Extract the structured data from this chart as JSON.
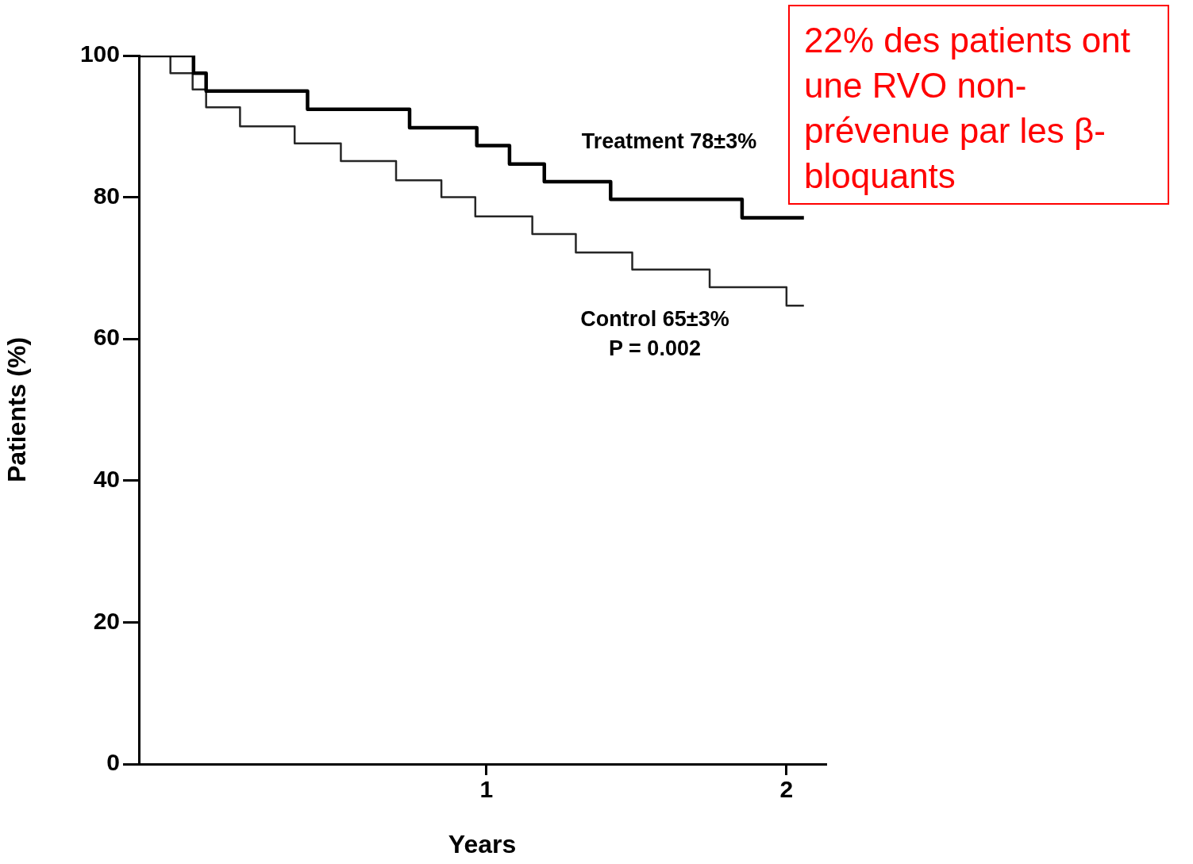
{
  "chart_data": {
    "type": "step",
    "xlabel": "Years",
    "ylabel": "Patients (%)",
    "xlim": [
      -0.158,
      2.13
    ],
    "xticks": [
      1,
      2
    ],
    "ylim": [
      0,
      100
    ],
    "yticks": [
      0,
      20,
      40,
      60,
      80,
      100
    ],
    "grid": false,
    "legend": false,
    "marker": "none",
    "line_style": "solid",
    "series": [
      {
        "name": "Treatment 78±3%",
        "color": "#000000",
        "x": [
          -0.158,
          0.024,
          0.066,
          0.404,
          0.744,
          0.968,
          1.077,
          1.193,
          1.414,
          1.852,
          2.058
        ],
        "values": [
          100,
          97.5,
          95,
          92.4,
          89.8,
          87.3,
          84.7,
          82.2,
          79.7,
          77.1,
          77.1
        ]
      },
      {
        "name": "Control 65±3%",
        "color": "#262626",
        "x": [
          -0.158,
          -0.053,
          0.021,
          0.066,
          0.179,
          0.361,
          0.515,
          0.699,
          0.85,
          0.963,
          1.153,
          1.298,
          1.486,
          1.744,
          2.0,
          2.058
        ],
        "values": [
          100,
          97.5,
          95.2,
          92.7,
          90,
          87.6,
          85.1,
          82.4,
          80,
          77.3,
          74.8,
          72.2,
          69.8,
          67.3,
          64.7,
          64.7
        ]
      }
    ],
    "annotations": [
      "P = 0.002",
      "22% des patients ont une RVO non-prévenue par les β-bloquants"
    ]
  }
}
